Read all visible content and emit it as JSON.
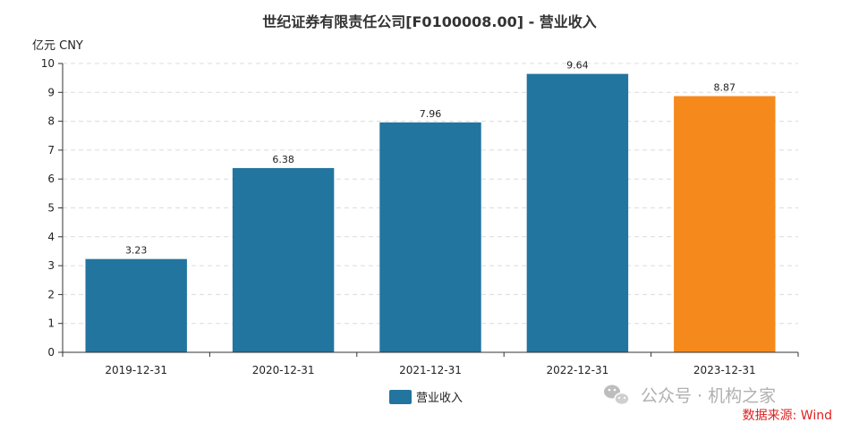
{
  "chart_data": {
    "type": "bar",
    "title": "世纪证券有限责任公司[F0100008.00] - 营业收入",
    "unit_label": "亿元  CNY",
    "categories": [
      "2019-12-31",
      "2020-12-31",
      "2021-12-31",
      "2022-12-31",
      "2023-12-31"
    ],
    "series": [
      {
        "name": "营业收入",
        "values": [
          3.23,
          6.38,
          7.96,
          9.64,
          8.87
        ],
        "color": "#22759e",
        "highlight_color": "#f5891b",
        "highlight_index": 4
      }
    ],
    "ylim": [
      0,
      10
    ],
    "yticks": [
      0,
      1,
      2,
      3,
      4,
      5,
      6,
      7,
      8,
      9,
      10
    ],
    "grid": true,
    "legend_position": "bottom-center"
  },
  "watermark": {
    "text": "公众号 · 机构之家",
    "icon": "wechat-icon"
  },
  "source": {
    "text": "数据来源: Wind",
    "color": "#e02020"
  }
}
